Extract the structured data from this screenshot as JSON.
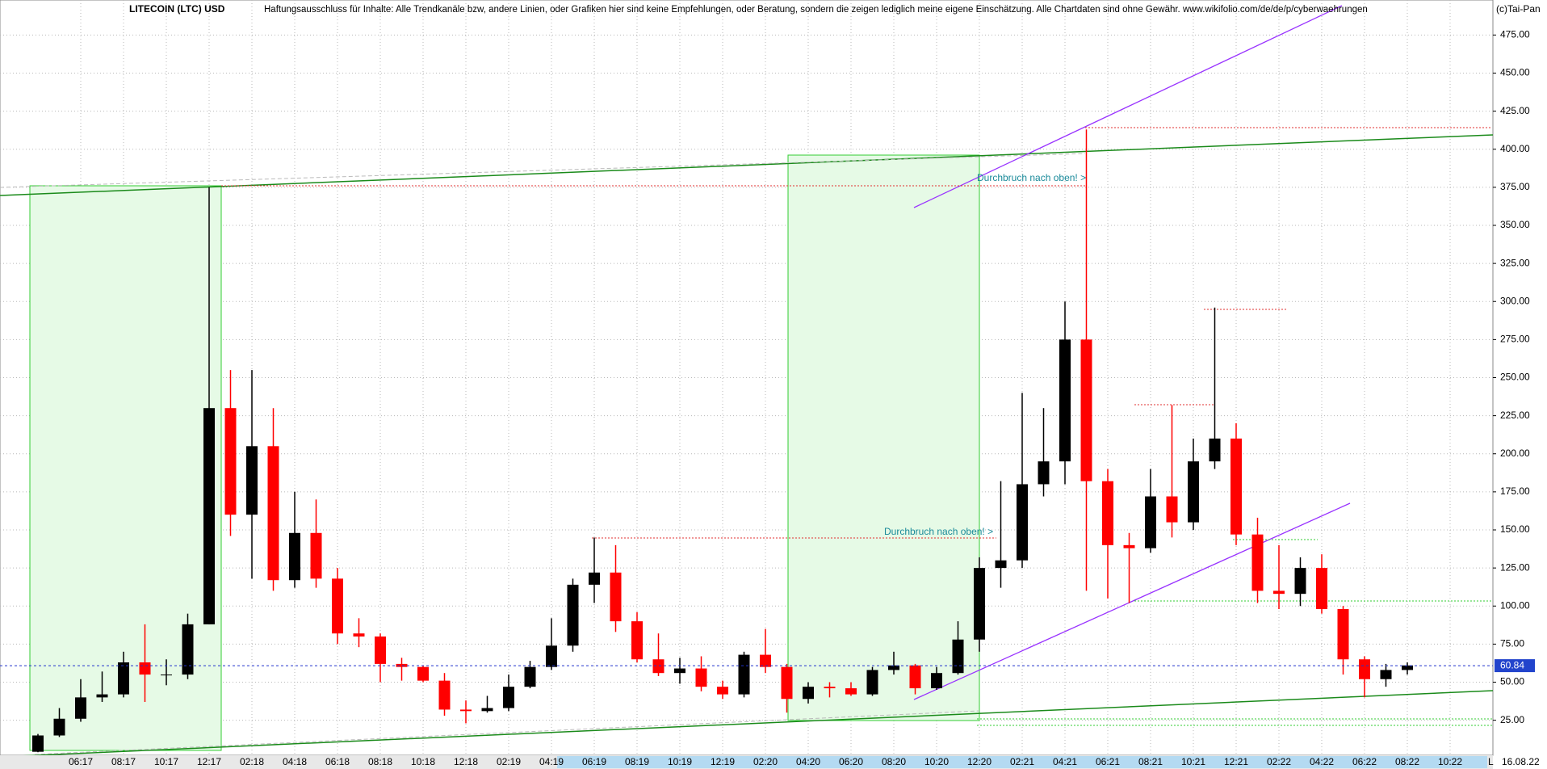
{
  "header": {
    "title": "LITECOIN (LTC) USD",
    "disclaimer": "Haftungsausschluss für Inhalte: Alle Trendkanäle bzw, andere Linien, oder Grafiken hier sind keine Empfehlungen, oder Beratung, sondern die zeigen lediglich meine eigene Einschätzung. Alle Chartdaten sind ohne Gewähr.  www.wikifolio.com/de/de/p/cyberwaehrungen",
    "copyright": "(c)Tai-Pan"
  },
  "chart_data": {
    "type": "candlestick",
    "categories": [
      null,
      null,
      "06:17",
      null,
      "08:17",
      null,
      "10:17",
      null,
      "12:17",
      null,
      "02:18",
      null,
      "04:18",
      null,
      "06:18",
      null,
      "08:18",
      null,
      "10:18",
      null,
      "12:18",
      null,
      "02:19",
      null,
      "04:19",
      null,
      "06:19",
      null,
      "08:19",
      null,
      "10:19",
      null,
      "12:19",
      null,
      "02:20",
      null,
      "04:20",
      null,
      "06:20",
      null,
      "08:20",
      null,
      "10:20",
      null,
      "12:20",
      null,
      "02:21",
      null,
      "04:21",
      null,
      "06:21",
      null,
      "08:21",
      null,
      "10:21",
      null,
      "12:21",
      null,
      "02:22",
      null,
      "04:22",
      null,
      "06:22",
      null,
      "08:22",
      null,
      "10:22"
    ],
    "open": [
      4.3,
      15,
      26,
      40,
      42,
      63,
      55,
      55,
      88,
      230,
      160,
      205,
      117,
      148,
      118,
      82,
      80,
      62,
      60,
      51,
      32,
      31,
      33,
      47,
      60,
      74,
      114,
      122,
      90,
      65,
      56,
      59,
      47,
      42,
      68,
      60,
      39,
      47,
      46,
      42,
      58,
      61,
      46,
      56,
      78,
      125,
      130,
      180,
      195,
      275,
      182,
      140,
      138,
      172,
      155,
      195,
      210,
      147,
      110,
      108,
      125,
      98,
      65,
      52,
      58,
      null,
      null
    ],
    "high": [
      16,
      33,
      52,
      57,
      70,
      88,
      65,
      95,
      375,
      255,
      255,
      230,
      175,
      170,
      125,
      92,
      82,
      66,
      61,
      56,
      38,
      41,
      55,
      64,
      92,
      118,
      145,
      140,
      96,
      82,
      66,
      67,
      51,
      70,
      85,
      62,
      50,
      50,
      50,
      60,
      70,
      62,
      60,
      90,
      132,
      182,
      240,
      230,
      300,
      413,
      190,
      148,
      190,
      232,
      210,
      296,
      220,
      158,
      140,
      132,
      134,
      100,
      67,
      62,
      63,
      null,
      null
    ],
    "low": [
      4,
      14,
      24,
      37,
      40,
      37,
      48,
      52,
      88,
      146,
      118,
      110,
      112,
      112,
      75,
      73,
      50,
      51,
      50,
      28,
      23,
      30,
      31,
      46,
      58,
      70,
      102,
      83,
      63,
      54,
      49,
      44,
      39,
      40,
      56,
      30,
      36,
      40,
      41,
      41,
      55,
      42,
      45,
      55,
      70,
      112,
      125,
      172,
      180,
      110,
      105,
      102,
      135,
      145,
      150,
      190,
      140,
      102,
      98,
      100,
      95,
      55,
      40,
      47,
      55,
      null,
      null
    ],
    "close": [
      15,
      26,
      40,
      42,
      63,
      55,
      55,
      88,
      230,
      160,
      205,
      117,
      148,
      118,
      82,
      80,
      62,
      60,
      51,
      32,
      31,
      33,
      47,
      60,
      74,
      114,
      122,
      90,
      65,
      56,
      59,
      47,
      42,
      68,
      60,
      39,
      47,
      46,
      42,
      58,
      61,
      46,
      56,
      78,
      125,
      130,
      180,
      195,
      275,
      182,
      140,
      138,
      172,
      155,
      195,
      210,
      147,
      110,
      108,
      125,
      98,
      65,
      52,
      58,
      61,
      null,
      null
    ],
    "up_color": "#000000",
    "down_color": "#ff0000",
    "ylim": [
      2,
      498
    ],
    "yticks": [
      {
        "value": 25,
        "label": "25.00"
      },
      {
        "value": 50,
        "label": "50.00"
      },
      {
        "value": 75,
        "label": "75.00"
      },
      {
        "value": 100,
        "label": "100.00"
      },
      {
        "value": 125,
        "label": "125.00"
      },
      {
        "value": 150,
        "label": "150.00"
      },
      {
        "value": 175,
        "label": "175.00"
      },
      {
        "value": 200,
        "label": "200.00"
      },
      {
        "value": 225,
        "label": "225.00"
      },
      {
        "value": 250,
        "label": "250.00"
      },
      {
        "value": 275,
        "label": "275.00"
      },
      {
        "value": 300,
        "label": "300.00"
      },
      {
        "value": 325,
        "label": "325.00"
      },
      {
        "value": 350,
        "label": "350.00"
      },
      {
        "value": 375,
        "label": "375.00"
      },
      {
        "value": 400,
        "label": "400.00"
      },
      {
        "value": 425,
        "label": "425.00"
      },
      {
        "value": 450,
        "label": "450.00"
      },
      {
        "value": 475,
        "label": "475.00"
      }
    ],
    "grid": true,
    "last_price": {
      "value": 60.84,
      "label": "60.84"
    },
    "last_date": "16.08.22",
    "axis_marker": "L",
    "annotations": [
      "Durchbruch nach oben! >",
      "Durchbruch nach oben! >"
    ]
  }
}
